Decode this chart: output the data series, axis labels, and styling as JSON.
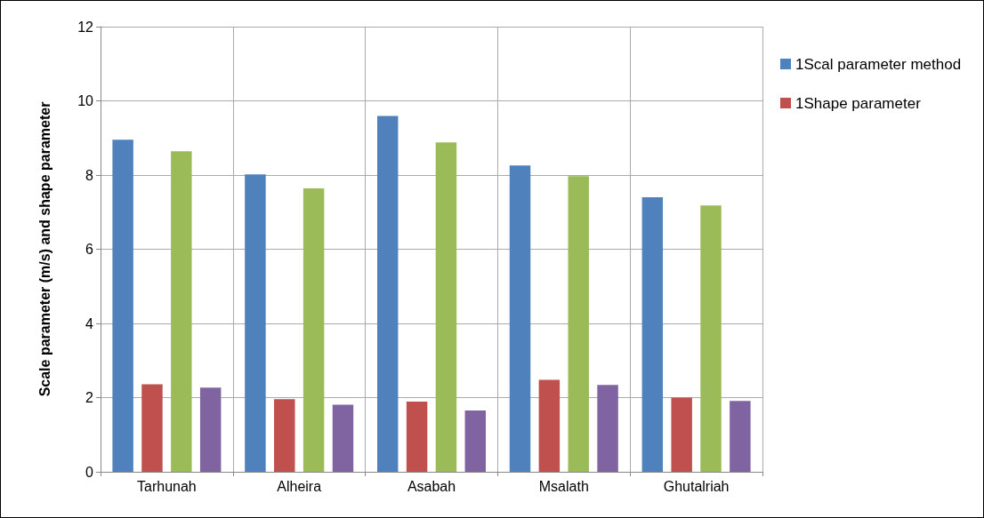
{
  "chart_data": {
    "type": "bar",
    "ylabel": "Scale parameter (m/s) and shape parameter",
    "categories": [
      "Tarhunah",
      "Alheira",
      "Asabah",
      "Msalath",
      "Ghutalriah"
    ],
    "series": [
      {
        "name": "1Scal parameter method",
        "color": "#4f81bd",
        "values": [
          8.95,
          8.02,
          9.59,
          8.26,
          7.4
        ]
      },
      {
        "name": "1Shape parameter",
        "color": "#c0504d",
        "values": [
          2.36,
          1.96,
          1.89,
          2.48,
          2.0
        ]
      },
      {
        "color": "#9bbb59",
        "values": [
          8.64,
          7.64,
          8.88,
          7.97,
          7.18
        ]
      },
      {
        "color": "#8064a2",
        "values": [
          2.27,
          1.81,
          1.65,
          2.34,
          1.91
        ]
      }
    ],
    "ylim": [
      0,
      12
    ],
    "yticks": [
      0,
      2,
      4,
      6,
      8,
      10,
      12
    ],
    "grid": true,
    "legend": "top right"
  }
}
